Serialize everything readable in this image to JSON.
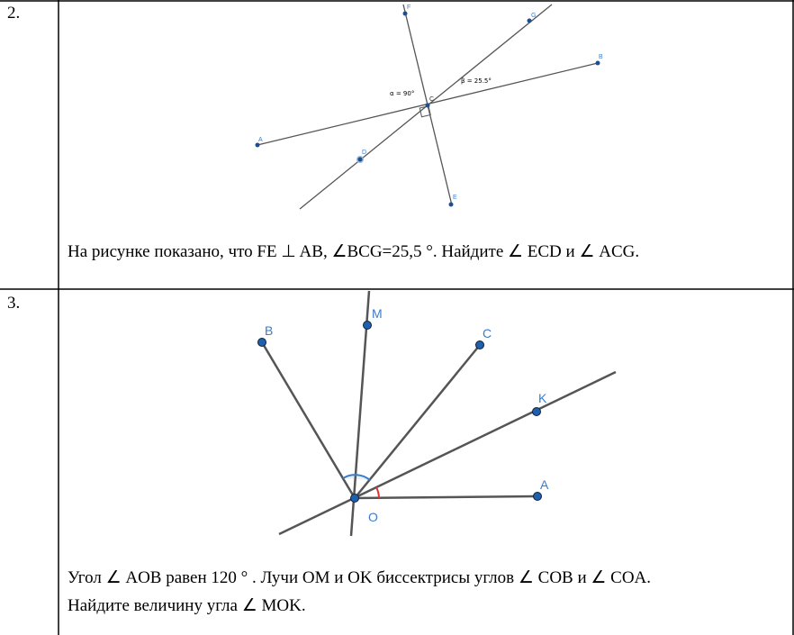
{
  "table": {
    "rows": [
      {
        "number": "2.",
        "figure": {
          "points": [
            "F",
            "G",
            "B",
            "A",
            "D",
            "E",
            "C"
          ],
          "annotations": [
            "α = 90°",
            "β = 25.5°"
          ]
        },
        "text": [
          "На рисунке показано, что FE ⊥ AB, ∠BCG=25,5 °.  Найдите  ∠ ECD и  ∠ ACG."
        ]
      },
      {
        "number": "3.",
        "figure": {
          "points": [
            "B",
            "M",
            "C",
            "K",
            "A",
            "O"
          ]
        },
        "text": [
          "Угол  ∠ AOB равен 120 ° . Лучи OM и OK биссектрисы углов  ∠ COB и  ∠ COA.",
          "Найдите величину угла  ∠ MOK."
        ]
      }
    ]
  }
}
